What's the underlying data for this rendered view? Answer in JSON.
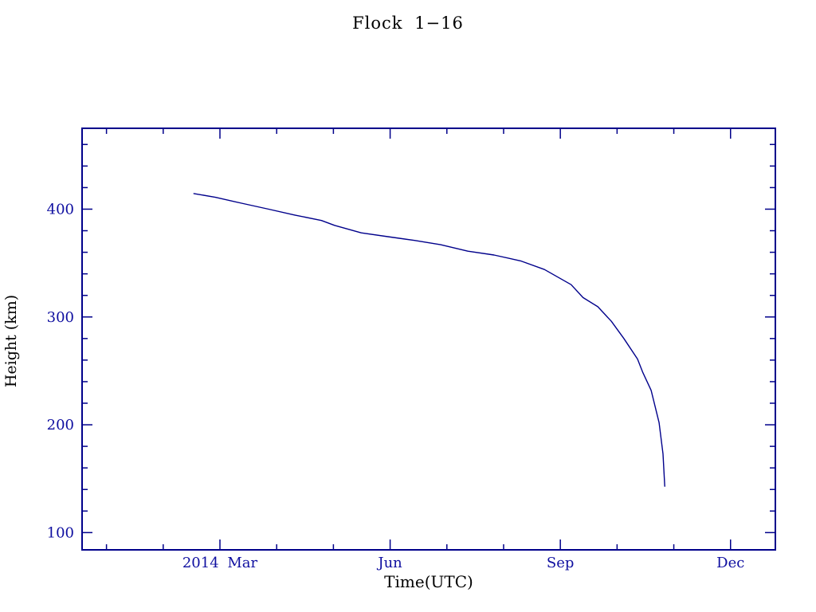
{
  "page": {
    "background_color": "#ffffff"
  },
  "chart_data": {
    "type": "line",
    "title": "Flock 1−16",
    "xlabel": "Time(UTC)",
    "ylabel": "Height (km)",
    "legend": "none",
    "grid": "off",
    "frame": "box with inward ticks on all four sides",
    "line_color": "#00008b",
    "frame_color": "#00008b",
    "text_color": "#0f0fa0",
    "x_unit": "months since 2014-01-01",
    "x_range": [
      -0.43,
      11.79
    ],
    "y_range": [
      84,
      475
    ],
    "x_major_ticks": [
      {
        "value": 2,
        "label": "2014 Mar"
      },
      {
        "value": 5,
        "label": "Jun"
      },
      {
        "value": 8,
        "label": "Sep"
      },
      {
        "value": 11,
        "label": "Dec"
      }
    ],
    "x_minor_ticks": [
      0,
      1,
      3,
      4,
      6,
      7,
      9,
      10
    ],
    "y_major_ticks": [
      {
        "value": 100,
        "label": "100"
      },
      {
        "value": 200,
        "label": "200"
      },
      {
        "value": 300,
        "label": "300"
      },
      {
        "value": 400,
        "label": "400"
      }
    ],
    "y_minor_step": 20,
    "series": [
      {
        "name": "Flock 1−16",
        "x": [
          1.54,
          1.92,
          2.38,
          2.86,
          3.32,
          3.79,
          4.02,
          4.49,
          4.96,
          5.43,
          5.89,
          6.37,
          6.83,
          7.3,
          7.72,
          8.19,
          8.4,
          8.66,
          8.9,
          9.12,
          9.36,
          9.45,
          9.6,
          9.74,
          9.81,
          9.84
        ],
        "y": [
          414.5,
          411,
          405.5,
          400,
          394.5,
          389.5,
          385,
          378,
          374.5,
          371,
          367,
          361,
          357.5,
          352,
          344,
          330,
          318,
          309.5,
          296,
          280,
          261,
          249,
          232,
          202,
          173,
          143
        ]
      }
    ]
  }
}
